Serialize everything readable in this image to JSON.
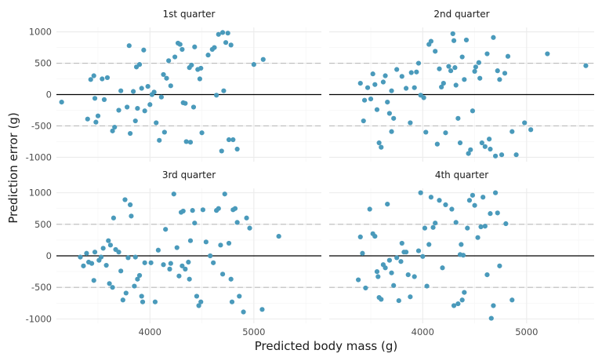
{
  "chart_data": {
    "type": "scatter",
    "xlabel": "Predicted body mass (g)",
    "ylabel": "Prediction error (g)",
    "x_ticks": [
      4000,
      5000
    ],
    "y_ticks": [
      -1000,
      -500,
      0,
      500,
      1000
    ],
    "xlim": [
      3100,
      5650
    ],
    "ylim": [
      -1070,
      1070
    ],
    "reference_lines": {
      "solid": 0,
      "dashed": [
        -500,
        500
      ]
    },
    "point_color": "#4a9abb",
    "panels": [
      {
        "title": "1st quarter",
        "points": [
          [
            3150,
            -120
          ],
          [
            3400,
            -390
          ],
          [
            3430,
            240
          ],
          [
            3460,
            300
          ],
          [
            3480,
            -440
          ],
          [
            3470,
            -60
          ],
          [
            3500,
            -340
          ],
          [
            3540,
            250
          ],
          [
            3560,
            -80
          ],
          [
            3590,
            270
          ],
          [
            3640,
            -580
          ],
          [
            3660,
            -520
          ],
          [
            3700,
            -250
          ],
          [
            3720,
            60
          ],
          [
            3780,
            -200
          ],
          [
            3800,
            780
          ],
          [
            3810,
            -620
          ],
          [
            3840,
            50
          ],
          [
            3860,
            -420
          ],
          [
            3870,
            440
          ],
          [
            3880,
            -220
          ],
          [
            3900,
            480
          ],
          [
            3920,
            100
          ],
          [
            3940,
            710
          ],
          [
            3950,
            -260
          ],
          [
            3980,
            130
          ],
          [
            4000,
            -160
          ],
          [
            4020,
            0
          ],
          [
            4040,
            40
          ],
          [
            4060,
            -450
          ],
          [
            4090,
            -730
          ],
          [
            4110,
            -40
          ],
          [
            4130,
            320
          ],
          [
            4140,
            -600
          ],
          [
            4160,
            260
          ],
          [
            4180,
            540
          ],
          [
            4200,
            140
          ],
          [
            4240,
            600
          ],
          [
            4270,
            820
          ],
          [
            4290,
            800
          ],
          [
            4310,
            720
          ],
          [
            4320,
            -130
          ],
          [
            4340,
            -140
          ],
          [
            4350,
            -750
          ],
          [
            4380,
            430
          ],
          [
            4390,
            -760
          ],
          [
            4400,
            470
          ],
          [
            4420,
            -200
          ],
          [
            4430,
            760
          ],
          [
            4460,
            400
          ],
          [
            4480,
            250
          ],
          [
            4500,
            -610
          ],
          [
            4490,
            420
          ],
          [
            4560,
            630
          ],
          [
            4600,
            720
          ],
          [
            4620,
            750
          ],
          [
            4640,
            -10
          ],
          [
            4660,
            960
          ],
          [
            4690,
            -900
          ],
          [
            4700,
            990
          ],
          [
            4710,
            60
          ],
          [
            4730,
            830
          ],
          [
            4750,
            980
          ],
          [
            4760,
            -720
          ],
          [
            4780,
            790
          ],
          [
            4800,
            -720
          ],
          [
            4840,
            -870
          ],
          [
            5000,
            480
          ],
          [
            5090,
            560
          ]
        ]
      },
      {
        "title": "2nd quarter",
        "points": [
          [
            3400,
            180
          ],
          [
            3430,
            -420
          ],
          [
            3440,
            -90
          ],
          [
            3470,
            110
          ],
          [
            3500,
            -70
          ],
          [
            3520,
            330
          ],
          [
            3540,
            160
          ],
          [
            3560,
            -240
          ],
          [
            3580,
            -770
          ],
          [
            3600,
            -840
          ],
          [
            3620,
            200
          ],
          [
            3640,
            300
          ],
          [
            3660,
            -120
          ],
          [
            3680,
            -300
          ],
          [
            3700,
            -590
          ],
          [
            3700,
            60
          ],
          [
            3720,
            -380
          ],
          [
            3750,
            400
          ],
          [
            3800,
            290
          ],
          [
            3840,
            100
          ],
          [
            3880,
            -450
          ],
          [
            3890,
            350
          ],
          [
            3920,
            110
          ],
          [
            3940,
            360
          ],
          [
            3960,
            500
          ],
          [
            3980,
            -10
          ],
          [
            4010,
            -50
          ],
          [
            4030,
            -600
          ],
          [
            4060,
            800
          ],
          [
            4080,
            850
          ],
          [
            4120,
            690
          ],
          [
            4140,
            -790
          ],
          [
            4160,
            410
          ],
          [
            4180,
            120
          ],
          [
            4200,
            180
          ],
          [
            4220,
            -610
          ],
          [
            4250,
            450
          ],
          [
            4270,
            380
          ],
          [
            4290,
            970
          ],
          [
            4300,
            860
          ],
          [
            4310,
            430
          ],
          [
            4320,
            150
          ],
          [
            4340,
            -380
          ],
          [
            4360,
            -770
          ],
          [
            4380,
            600
          ],
          [
            4400,
            240
          ],
          [
            4420,
            870
          ],
          [
            4440,
            -940
          ],
          [
            4460,
            -880
          ],
          [
            4480,
            -260
          ],
          [
            4500,
            370
          ],
          [
            4510,
            440
          ],
          [
            4540,
            510
          ],
          [
            4550,
            260
          ],
          [
            4570,
            -770
          ],
          [
            4600,
            -830
          ],
          [
            4620,
            650
          ],
          [
            4640,
            -710
          ],
          [
            4650,
            -870
          ],
          [
            4680,
            910
          ],
          [
            4700,
            -980
          ],
          [
            4720,
            380
          ],
          [
            4740,
            240
          ],
          [
            4760,
            -960
          ],
          [
            4790,
            340
          ],
          [
            4820,
            610
          ],
          [
            4860,
            -590
          ],
          [
            4900,
            -960
          ],
          [
            4980,
            -450
          ],
          [
            5040,
            -560
          ],
          [
            5200,
            650
          ],
          [
            5570,
            460
          ]
        ]
      },
      {
        "title": "3rd quarter",
        "points": [
          [
            3330,
            -20
          ],
          [
            3360,
            -160
          ],
          [
            3390,
            40
          ],
          [
            3410,
            -100
          ],
          [
            3440,
            -120
          ],
          [
            3460,
            -390
          ],
          [
            3470,
            60
          ],
          [
            3510,
            -70
          ],
          [
            3530,
            -20
          ],
          [
            3550,
            120
          ],
          [
            3580,
            -150
          ],
          [
            3600,
            240
          ],
          [
            3610,
            -440
          ],
          [
            3620,
            170
          ],
          [
            3640,
            -500
          ],
          [
            3650,
            600
          ],
          [
            3670,
            100
          ],
          [
            3700,
            60
          ],
          [
            3720,
            -240
          ],
          [
            3740,
            -700
          ],
          [
            3760,
            890
          ],
          [
            3770,
            -590
          ],
          [
            3790,
            -30
          ],
          [
            3810,
            810
          ],
          [
            3820,
            630
          ],
          [
            3850,
            -480
          ],
          [
            3860,
            -20
          ],
          [
            3880,
            -370
          ],
          [
            3900,
            -310
          ],
          [
            3920,
            -640
          ],
          [
            3930,
            -730
          ],
          [
            3950,
            -110
          ],
          [
            4010,
            -110
          ],
          [
            4050,
            -730
          ],
          [
            4080,
            90
          ],
          [
            4130,
            -140
          ],
          [
            4150,
            420
          ],
          [
            4190,
            -210
          ],
          [
            4200,
            -120
          ],
          [
            4230,
            980
          ],
          [
            4260,
            130
          ],
          [
            4280,
            -320
          ],
          [
            4300,
            690
          ],
          [
            4310,
            -160
          ],
          [
            4320,
            710
          ],
          [
            4340,
            -210
          ],
          [
            4370,
            -100
          ],
          [
            4380,
            -370
          ],
          [
            4390,
            240
          ],
          [
            4410,
            720
          ],
          [
            4430,
            520
          ],
          [
            4450,
            -640
          ],
          [
            4470,
            -790
          ],
          [
            4490,
            -730
          ],
          [
            4510,
            730
          ],
          [
            4540,
            220
          ],
          [
            4580,
            0
          ],
          [
            4610,
            -110
          ],
          [
            4640,
            720
          ],
          [
            4660,
            750
          ],
          [
            4680,
            170
          ],
          [
            4700,
            -290
          ],
          [
            4720,
            980
          ],
          [
            4760,
            200
          ],
          [
            4780,
            -370
          ],
          [
            4790,
            -730
          ],
          [
            4800,
            730
          ],
          [
            4820,
            750
          ],
          [
            4840,
            530
          ],
          [
            4860,
            -640
          ],
          [
            4900,
            -890
          ],
          [
            4930,
            600
          ],
          [
            4960,
            440
          ],
          [
            5080,
            -850
          ],
          [
            5240,
            310
          ]
        ]
      },
      {
        "title": "4th quarter",
        "points": [
          [
            3380,
            -380
          ],
          [
            3400,
            300
          ],
          [
            3420,
            40
          ],
          [
            3450,
            -510
          ],
          [
            3490,
            740
          ],
          [
            3520,
            350
          ],
          [
            3540,
            310
          ],
          [
            3560,
            -250
          ],
          [
            3570,
            -330
          ],
          [
            3580,
            -660
          ],
          [
            3600,
            -690
          ],
          [
            3620,
            -140
          ],
          [
            3640,
            -190
          ],
          [
            3660,
            820
          ],
          [
            3680,
            -70
          ],
          [
            3700,
            -270
          ],
          [
            3720,
            -470
          ],
          [
            3750,
            -30
          ],
          [
            3770,
            -710
          ],
          [
            3790,
            -90
          ],
          [
            3800,
            200
          ],
          [
            3820,
            60
          ],
          [
            3840,
            60
          ],
          [
            3860,
            -300
          ],
          [
            3880,
            -650
          ],
          [
            3920,
            -330
          ],
          [
            3960,
            80
          ],
          [
            3980,
            1000
          ],
          [
            4000,
            -10
          ],
          [
            4020,
            440
          ],
          [
            4040,
            -480
          ],
          [
            4060,
            180
          ],
          [
            4080,
            930
          ],
          [
            4100,
            450
          ],
          [
            4120,
            520
          ],
          [
            4160,
            880
          ],
          [
            4190,
            -190
          ],
          [
            4220,
            810
          ],
          [
            4280,
            740
          ],
          [
            4300,
            -790
          ],
          [
            4320,
            530
          ],
          [
            4340,
            -760
          ],
          [
            4360,
            20
          ],
          [
            4370,
            180
          ],
          [
            4380,
            -700
          ],
          [
            4390,
            10
          ],
          [
            4400,
            -580
          ],
          [
            4430,
            440
          ],
          [
            4450,
            880
          ],
          [
            4480,
            960
          ],
          [
            4500,
            800
          ],
          [
            4530,
            290
          ],
          [
            4560,
            460
          ],
          [
            4580,
            930
          ],
          [
            4600,
            470
          ],
          [
            4620,
            -300
          ],
          [
            4650,
            670
          ],
          [
            4660,
            -990
          ],
          [
            4680,
            -790
          ],
          [
            4700,
            1000
          ],
          [
            4720,
            680
          ],
          [
            4740,
            -160
          ],
          [
            4800,
            510
          ],
          [
            4860,
            -700
          ]
        ]
      }
    ]
  }
}
